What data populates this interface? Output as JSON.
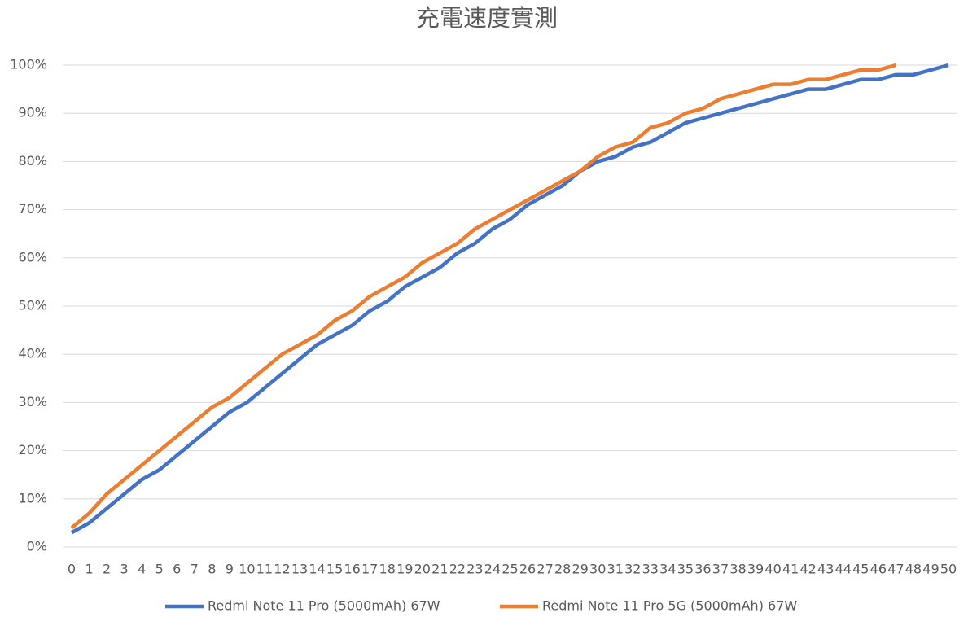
{
  "chart_data": {
    "type": "line",
    "title": "充電速度實測",
    "categories": [
      "0",
      "1",
      "2",
      "3",
      "4",
      "5",
      "6",
      "7",
      "8",
      "9",
      "10",
      "11",
      "12",
      "13",
      "14",
      "15",
      "16",
      "17",
      "18",
      "19",
      "20",
      "21",
      "22",
      "23",
      "24",
      "25",
      "26",
      "27",
      "28",
      "29",
      "30",
      "31",
      "32",
      "33",
      "34",
      "35",
      "36",
      "37",
      "38",
      "39",
      "40",
      "41",
      "42",
      "43",
      "44",
      "45",
      "46",
      "47",
      "48",
      "49",
      "50"
    ],
    "series": [
      {
        "name": "Redmi Note 11 Pro (5000mAh) 67W",
        "color": "#4472c4",
        "values": [
          3,
          5,
          8,
          11,
          14,
          16,
          19,
          22,
          25,
          28,
          30,
          33,
          36,
          39,
          42,
          44,
          46,
          49,
          51,
          54,
          56,
          58,
          61,
          63,
          66,
          68,
          71,
          73,
          75,
          78,
          80,
          81,
          83,
          84,
          86,
          88,
          89,
          90,
          91,
          92,
          93,
          94,
          95,
          95,
          96,
          97,
          97,
          98,
          98,
          99,
          100
        ]
      },
      {
        "name": "Redmi Note 11 Pro 5G (5000mAh) 67W",
        "color": "#ed7d31",
        "values": [
          4,
          7,
          11,
          14,
          17,
          20,
          23,
          26,
          29,
          31,
          34,
          37,
          40,
          42,
          44,
          47,
          49,
          52,
          54,
          56,
          59,
          61,
          63,
          66,
          68,
          70,
          72,
          74,
          76,
          78,
          81,
          83,
          84,
          87,
          88,
          90,
          91,
          93,
          94,
          95,
          96,
          96,
          97,
          97,
          98,
          99,
          99,
          100,
          null,
          null,
          null
        ]
      }
    ],
    "ylim": [
      0,
      100
    ],
    "yticks": [
      {
        "value": 0,
        "label": "0%"
      },
      {
        "value": 10,
        "label": "10%"
      },
      {
        "value": 20,
        "label": "20%"
      },
      {
        "value": 30,
        "label": "30%"
      },
      {
        "value": 40,
        "label": "40%"
      },
      {
        "value": 50,
        "label": "50%"
      },
      {
        "value": 60,
        "label": "60%"
      },
      {
        "value": 70,
        "label": "70%"
      },
      {
        "value": 80,
        "label": "80%"
      },
      {
        "value": 90,
        "label": "90%"
      },
      {
        "value": 100,
        "label": "100%"
      }
    ],
    "grid": true,
    "legend": "bottom"
  }
}
